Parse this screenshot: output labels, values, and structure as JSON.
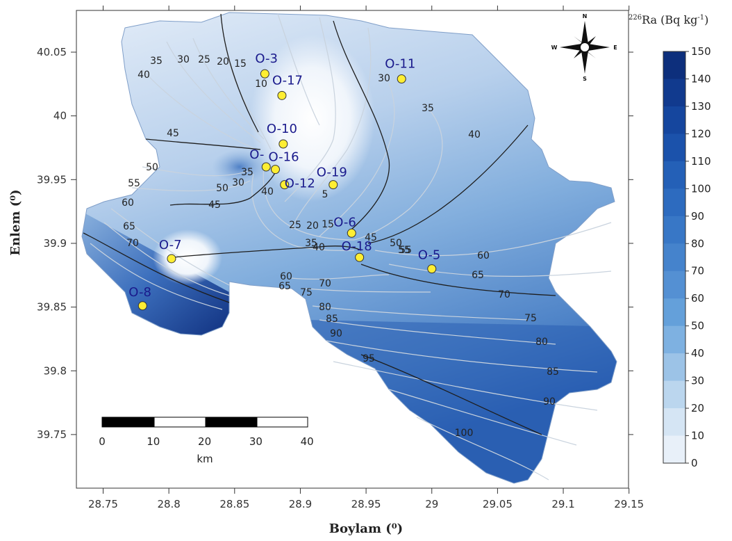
{
  "map": {
    "x_axis": {
      "title": "Boylam (⁰)",
      "ticks": [
        "28.75",
        "28.8",
        "28.85",
        "28.9",
        "28.95",
        "29",
        "29.05",
        "29.1",
        "29.15"
      ]
    },
    "y_axis": {
      "title": "Enlem (⁰)",
      "ticks": [
        "40.05",
        "40",
        "39.95",
        "39.9",
        "39.85",
        "39.8",
        "39.75"
      ]
    },
    "legend": {
      "title_superscript": "226",
      "title_text": "Ra (Bq kg",
      "title_exponent": "-1",
      "title_close": ")",
      "levels": [
        "150",
        "140",
        "130",
        "120",
        "110",
        "100",
        "90",
        "80",
        "70",
        "60",
        "50",
        "40",
        "30",
        "20",
        "10",
        "0"
      ],
      "colors": [
        "#0d2f7c",
        "#113a8e",
        "#15469e",
        "#1b52ab",
        "#2460b7",
        "#2d6bbf",
        "#3877c6",
        "#4583cc",
        "#5490d3",
        "#64a0da",
        "#7eb1e1",
        "#9cc3e7",
        "#bbd6ee",
        "#d5e5f4",
        "#e8f0f9",
        "#ffffff"
      ]
    },
    "compass": {
      "north": "N",
      "south": "S",
      "east": "E",
      "west": "W"
    },
    "scale_bar": {
      "ticks": [
        "0",
        "10",
        "20",
        "30",
        "40"
      ],
      "unit": "km"
    },
    "stations": [
      {
        "id": "O-3",
        "lon": 28.873,
        "lat": 40.033
      },
      {
        "id": "O-17",
        "lon": 28.886,
        "lat": 40.016
      },
      {
        "id": "O-11",
        "lon": 28.977,
        "lat": 40.029
      },
      {
        "id": "O-10",
        "lon": 28.887,
        "lat": 39.978
      },
      {
        "id": "O-16",
        "lon": 28.881,
        "lat": 39.958
      },
      {
        "id": "O-",
        "lon": 28.874,
        "lat": 39.96
      },
      {
        "id": "O-12",
        "lon": 28.888,
        "lat": 39.946
      },
      {
        "id": "O-19",
        "lon": 28.925,
        "lat": 39.946
      },
      {
        "id": "O-6",
        "lon": 28.939,
        "lat": 39.908
      },
      {
        "id": "O-18",
        "lon": 28.945,
        "lat": 39.889
      },
      {
        "id": "O-5",
        "lon": 29.0,
        "lat": 39.88
      },
      {
        "id": "O-7",
        "lon": 28.802,
        "lat": 39.888
      },
      {
        "id": "O-8",
        "lon": 28.78,
        "lat": 39.851
      }
    ],
    "contour_labels": [
      "35",
      "30",
      "25",
      "20",
      "15",
      "10",
      "40",
      "45",
      "50",
      "55",
      "60",
      "65",
      "70",
      "35",
      "30",
      "40",
      "45",
      "50",
      "5",
      "25",
      "20",
      "15",
      "35",
      "40",
      "45",
      "50",
      "55",
      "60",
      "65",
      "70",
      "75",
      "80",
      "85",
      "90",
      "95",
      "100",
      "75",
      "80",
      "85",
      "90",
      "60",
      "65",
      "70",
      "55",
      "30",
      "35",
      "40"
    ]
  }
}
